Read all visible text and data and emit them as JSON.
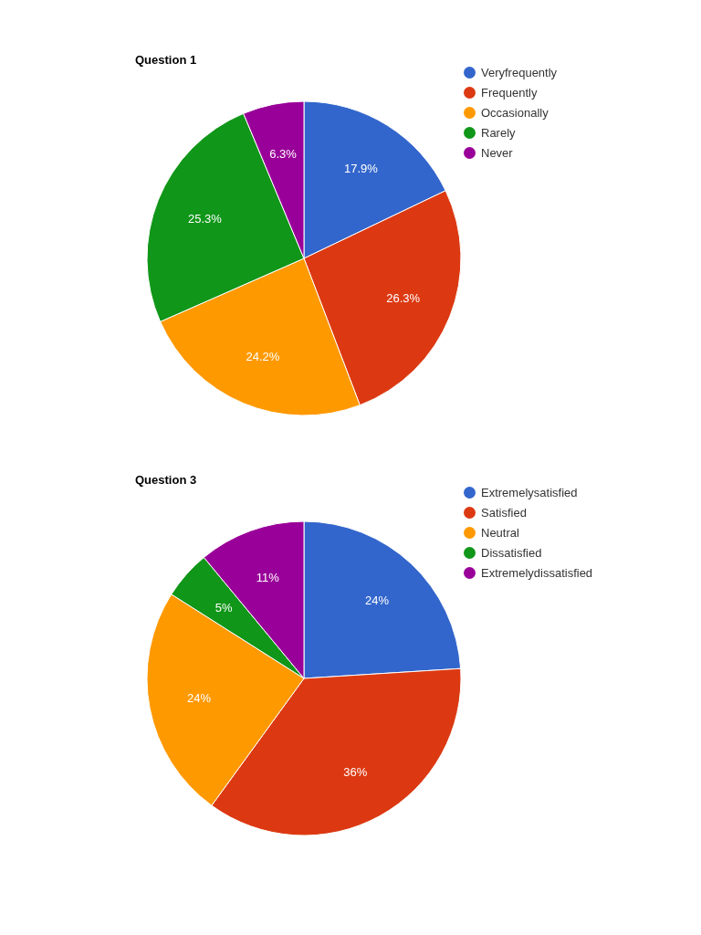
{
  "chart_data": [
    {
      "type": "pie",
      "title": "Question 1",
      "categories": [
        "Veryfrequently",
        "Frequently",
        "Occasionally",
        "Rarely",
        "Never"
      ],
      "values": [
        17.9,
        26.3,
        24.2,
        25.3,
        6.3
      ],
      "colors": [
        "#3366cc",
        "#dc3912",
        "#ff9900",
        "#109618",
        "#990099"
      ],
      "value_labels": [
        "17.9%",
        "26.3%",
        "24.2%",
        "25.3%",
        "6.3%"
      ],
      "legend": "top right"
    },
    {
      "type": "pie",
      "title": "Question 3",
      "categories": [
        "Extremelysatisfied",
        "Satisfied",
        "Neutral",
        "Dissatisfied",
        "Extremelydissatisfied"
      ],
      "values": [
        24,
        36,
        24,
        5,
        11
      ],
      "colors": [
        "#3366cc",
        "#dc3912",
        "#ff9900",
        "#109618",
        "#990099"
      ],
      "value_labels": [
        "24%",
        "36%",
        "24%",
        "5%",
        "11%"
      ],
      "legend": "top right"
    }
  ]
}
